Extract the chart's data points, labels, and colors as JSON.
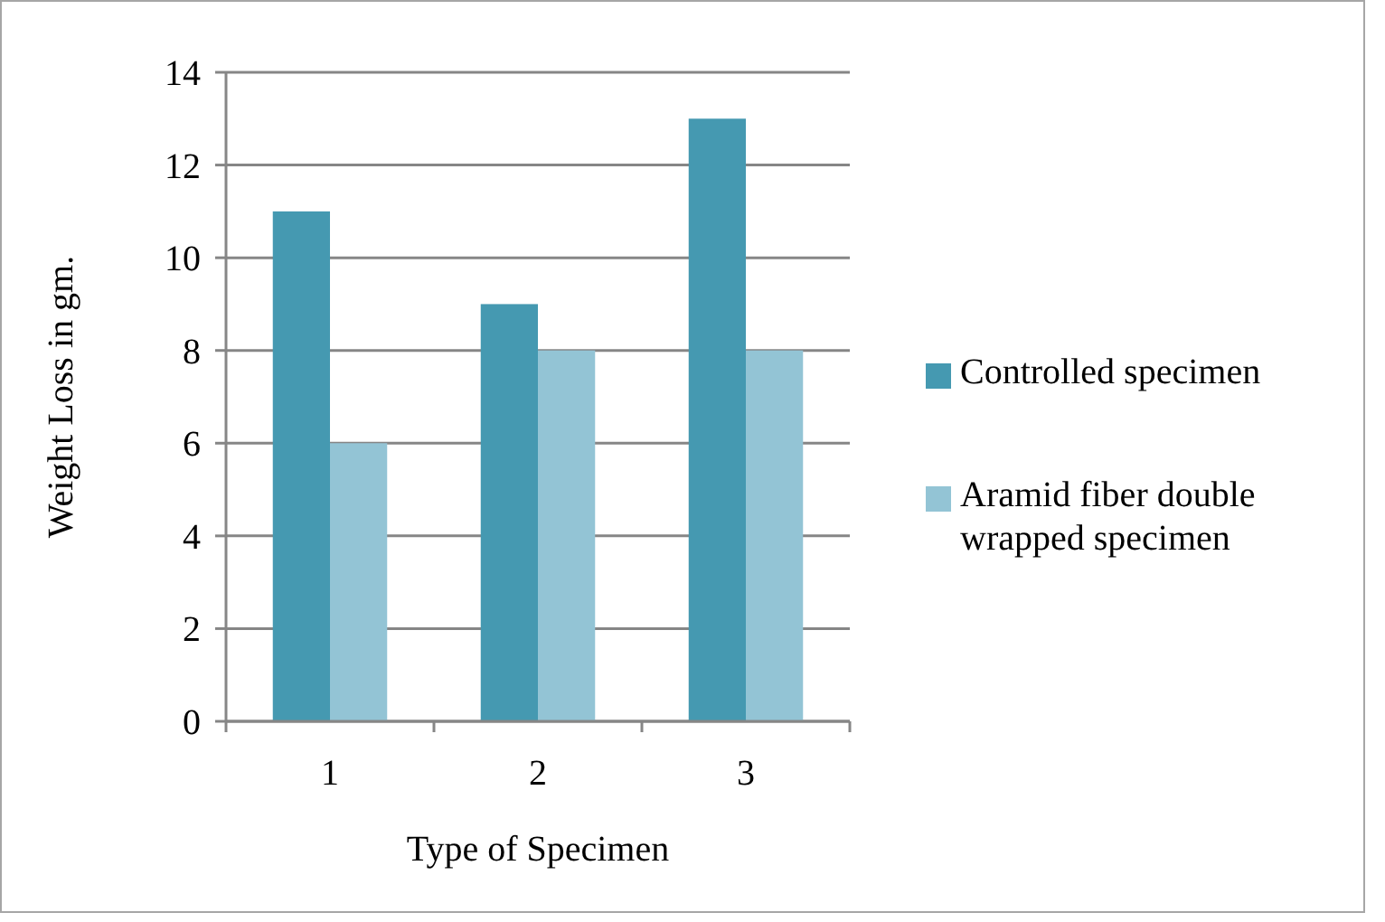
{
  "chart_data": {
    "type": "bar",
    "xlabel": "Type of Specimen",
    "ylabel": "Weight Loss in gm.",
    "categories": [
      "1",
      "2",
      "3"
    ],
    "series": [
      {
        "name": "Controlled specimen",
        "color": "#4599b1",
        "values": [
          11,
          9,
          13
        ]
      },
      {
        "name": "Aramid fiber double wrapped specimen",
        "color": "#93c4d5",
        "values": [
          6,
          8,
          8
        ]
      }
    ],
    "ylim": [
      0,
      14
    ],
    "yticks": [
      0,
      2,
      4,
      6,
      8,
      10,
      12,
      14
    ],
    "grid": "y",
    "legend": "right"
  }
}
